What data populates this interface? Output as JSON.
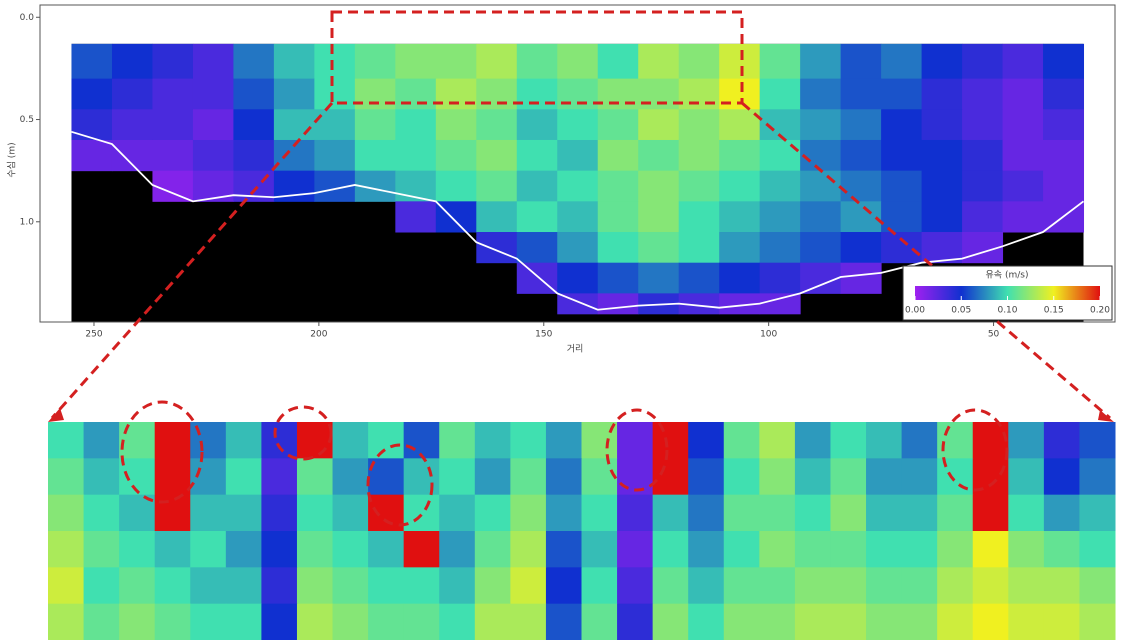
{
  "chart_data": [
    {
      "type": "heatmap",
      "x_label": "거리",
      "y_label": "수심 (m)",
      "xlim": [
        262,
        23
      ],
      "ylim": [
        -0.06,
        1.49
      ],
      "xticks": [
        250,
        200,
        150,
        100,
        50
      ],
      "yticks": [
        {
          "value": 0,
          "label": "0.0"
        },
        {
          "value": 0.5,
          "label": "0.5"
        },
        {
          "value": 1,
          "label": "1.0"
        }
      ],
      "x_bins": [
        255,
        246,
        237,
        228,
        219,
        210,
        201,
        192,
        183,
        174,
        165,
        156,
        147,
        138,
        129,
        120,
        111,
        102,
        93,
        84,
        75,
        66,
        57,
        48,
        39,
        30
      ],
      "y_bins": [
        0.13,
        0.3,
        0.45,
        0.6,
        0.75,
        0.9,
        1.05,
        1.2,
        1.35,
        1.45
      ],
      "z": [
        [
          0.06,
          0.05,
          0.04,
          0.03,
          0.07,
          0.09,
          0.1,
          0.11,
          0.12,
          0.12,
          0.13,
          0.11,
          0.12,
          0.1,
          0.13,
          0.12,
          0.14,
          0.11,
          0.08,
          0.06,
          0.07,
          0.05,
          0.04,
          0.03,
          0.05
        ],
        [
          0.05,
          0.04,
          0.03,
          0.03,
          0.06,
          0.08,
          0.1,
          0.12,
          0.11,
          0.13,
          0.12,
          0.1,
          0.11,
          0.12,
          0.12,
          0.13,
          0.15,
          0.1,
          0.07,
          0.06,
          0.06,
          0.04,
          0.03,
          0.02,
          0.04
        ],
        [
          0.04,
          0.03,
          0.03,
          0.02,
          0.05,
          0.09,
          0.09,
          0.11,
          0.1,
          0.12,
          0.11,
          0.09,
          0.1,
          0.11,
          0.13,
          0.12,
          0.13,
          0.09,
          0.08,
          0.07,
          0.05,
          0.04,
          0.03,
          0.02,
          0.03
        ],
        [
          0.02,
          0.02,
          0.02,
          0.03,
          0.04,
          0.07,
          0.08,
          0.1,
          0.1,
          0.11,
          0.12,
          0.1,
          0.09,
          0.12,
          0.11,
          0.12,
          0.11,
          0.1,
          0.07,
          0.06,
          0.05,
          0.05,
          0.04,
          0.02,
          0.02
        ],
        [
          null,
          null,
          0.01,
          0.02,
          0.03,
          0.05,
          0.06,
          0.08,
          0.09,
          0.1,
          0.11,
          0.09,
          0.1,
          0.11,
          0.12,
          0.11,
          0.1,
          0.09,
          0.08,
          0.07,
          0.06,
          0.05,
          0.04,
          0.03,
          0.02
        ],
        [
          null,
          null,
          null,
          null,
          null,
          null,
          null,
          null,
          0.03,
          0.05,
          0.09,
          0.1,
          0.09,
          0.11,
          0.12,
          0.1,
          0.09,
          0.08,
          0.07,
          0.08,
          0.06,
          0.05,
          0.03,
          0.02,
          0.02
        ],
        [
          null,
          null,
          null,
          null,
          null,
          null,
          null,
          null,
          null,
          null,
          0.04,
          0.06,
          0.08,
          0.1,
          0.11,
          0.1,
          0.08,
          0.07,
          0.06,
          0.05,
          0.04,
          0.03,
          0.02,
          null,
          null
        ],
        [
          null,
          null,
          null,
          null,
          null,
          null,
          null,
          null,
          null,
          null,
          null,
          0.03,
          0.05,
          0.06,
          0.07,
          0.06,
          0.05,
          0.04,
          0.03,
          0.02,
          null,
          null,
          null,
          null,
          null
        ],
        [
          null,
          null,
          null,
          null,
          null,
          null,
          null,
          null,
          null,
          null,
          null,
          null,
          0.03,
          0.02,
          0.04,
          0.03,
          0.02,
          0.02,
          null,
          null,
          null,
          null,
          null,
          null,
          null
        ]
      ],
      "bed_line": {
        "color": "#ffffff",
        "x": [
          255,
          246,
          237,
          228,
          219,
          210,
          201,
          192,
          183,
          174,
          165,
          156,
          147,
          138,
          129,
          120,
          111,
          102,
          93,
          84,
          75,
          66,
          57,
          48,
          39,
          30
        ],
        "depth": [
          0.56,
          0.62,
          0.82,
          0.9,
          0.87,
          0.88,
          0.86,
          0.82,
          0.86,
          0.9,
          1.1,
          1.18,
          1.35,
          1.43,
          1.41,
          1.4,
          1.42,
          1.4,
          1.35,
          1.27,
          1.25,
          1.2,
          1.18,
          1.12,
          1.05,
          0.9
        ]
      },
      "colorbar": {
        "title": "유속 (m/s)",
        "ticks": [
          {
            "value": 0,
            "label": "0.00"
          },
          {
            "value": 0.05,
            "label": "0.05"
          },
          {
            "value": 0.1,
            "label": "0.10"
          },
          {
            "value": 0.15,
            "label": "0.15"
          },
          {
            "value": 0.2,
            "label": "0.20"
          }
        ],
        "colors": [
          "#a020f0",
          "#1030d0",
          "#40e0b0",
          "#f0f020",
          "#e01010"
        ]
      }
    },
    {
      "type": "heatmap",
      "z": [
        [
          0.1,
          0.08,
          0.11,
          0.2,
          0.07,
          0.09,
          0.04,
          0.2,
          0.09,
          0.1,
          0.06,
          0.11,
          0.09,
          0.1,
          0.08,
          0.12,
          0.02,
          0.2,
          0.05,
          0.11,
          0.13,
          0.08,
          0.1,
          0.09,
          0.07,
          0.11,
          0.2,
          0.08,
          0.04,
          0.06
        ],
        [
          0.11,
          0.09,
          0.1,
          0.2,
          0.08,
          0.1,
          0.03,
          0.11,
          0.08,
          0.06,
          0.09,
          0.1,
          0.08,
          0.11,
          0.07,
          0.11,
          0.02,
          0.2,
          0.06,
          0.1,
          0.12,
          0.09,
          0.11,
          0.08,
          0.08,
          0.1,
          0.2,
          0.09,
          0.05,
          0.07
        ],
        [
          0.12,
          0.1,
          0.09,
          0.2,
          0.09,
          0.09,
          0.04,
          0.1,
          0.09,
          0.2,
          0.1,
          0.09,
          0.1,
          0.12,
          0.08,
          0.1,
          0.03,
          0.09,
          0.07,
          0.11,
          0.11,
          0.1,
          0.12,
          0.09,
          0.09,
          0.11,
          0.2,
          0.1,
          0.08,
          0.09
        ],
        [
          0.13,
          0.11,
          0.1,
          0.09,
          0.1,
          0.08,
          0.05,
          0.11,
          0.1,
          0.09,
          0.2,
          0.08,
          0.11,
          0.13,
          0.06,
          0.09,
          0.02,
          0.1,
          0.08,
          0.1,
          0.12,
          0.11,
          0.11,
          0.1,
          0.1,
          0.12,
          0.15,
          0.12,
          0.11,
          0.1
        ],
        [
          0.14,
          0.1,
          0.11,
          0.1,
          0.09,
          0.09,
          0.04,
          0.12,
          0.11,
          0.1,
          0.1,
          0.09,
          0.12,
          0.14,
          0.05,
          0.1,
          0.03,
          0.11,
          0.09,
          0.11,
          0.11,
          0.12,
          0.12,
          0.11,
          0.11,
          0.13,
          0.14,
          0.13,
          0.13,
          0.12
        ],
        [
          0.13,
          0.11,
          0.12,
          0.11,
          0.1,
          0.1,
          0.05,
          0.13,
          0.12,
          0.11,
          0.11,
          0.1,
          0.13,
          0.13,
          0.06,
          0.11,
          0.04,
          0.12,
          0.1,
          0.12,
          0.12,
          0.13,
          0.13,
          0.12,
          0.12,
          0.14,
          0.15,
          0.14,
          0.14,
          0.13
        ]
      ]
    }
  ]
}
